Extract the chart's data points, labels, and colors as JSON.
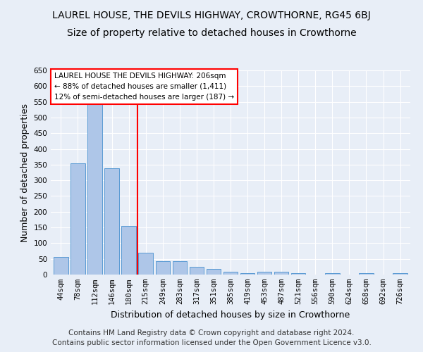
{
  "title": "LAUREL HOUSE, THE DEVILS HIGHWAY, CROWTHORNE, RG45 6BJ",
  "subtitle": "Size of property relative to detached houses in Crowthorne",
  "xlabel": "Distribution of detached houses by size in Crowthorne",
  "ylabel": "Number of detached properties",
  "categories": [
    "44sqm",
    "78sqm",
    "112sqm",
    "146sqm",
    "180sqm",
    "215sqm",
    "249sqm",
    "283sqm",
    "317sqm",
    "351sqm",
    "385sqm",
    "419sqm",
    "453sqm",
    "487sqm",
    "521sqm",
    "556sqm",
    "590sqm",
    "624sqm",
    "658sqm",
    "692sqm",
    "726sqm"
  ],
  "values": [
    57,
    355,
    542,
    338,
    155,
    70,
    42,
    42,
    25,
    17,
    10,
    5,
    10,
    10,
    5,
    0,
    5,
    0,
    5,
    0,
    5
  ],
  "bar_color": "#aec6e8",
  "bar_edge_color": "#5a9bd4",
  "vline_position": 4.5,
  "vline_color": "red",
  "ylim": [
    0,
    650
  ],
  "yticks": [
    0,
    50,
    100,
    150,
    200,
    250,
    300,
    350,
    400,
    450,
    500,
    550,
    600,
    650
  ],
  "annotation_box_text": "LAUREL HOUSE THE DEVILS HIGHWAY: 206sqm\n← 88% of detached houses are smaller (1,411)\n12% of semi-detached houses are larger (187) →",
  "annotation_box_color": "red",
  "annotation_box_fill": "white",
  "footer1": "Contains HM Land Registry data © Crown copyright and database right 2024.",
  "footer2": "Contains public sector information licensed under the Open Government Licence v3.0.",
  "background_color": "#e8eef7",
  "plot_bg_color": "#e8eef7",
  "title_fontsize": 10,
  "subtitle_fontsize": 10,
  "ylabel_fontsize": 9,
  "xlabel_fontsize": 9,
  "tick_fontsize": 7.5,
  "annotation_fontsize": 7.5,
  "footer_fontsize": 7.5
}
